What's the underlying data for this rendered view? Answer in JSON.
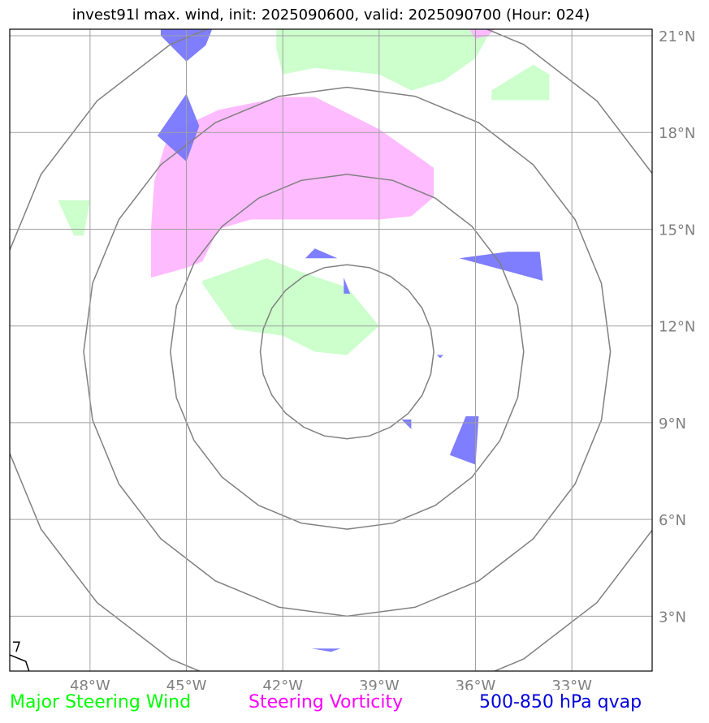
{
  "title": "invest91l max. wind, init: 2025090600, valid: 2025090700 (Hour: 024)",
  "map": {
    "lon_range": [
      -50.5,
      -30.5
    ],
    "lat_range": [
      1.3,
      21.2
    ],
    "center": {
      "lon": -40,
      "lat": 11.2
    },
    "lon_ticks": [
      {
        "value": -48,
        "label": "48°W"
      },
      {
        "value": -45,
        "label": "45°W"
      },
      {
        "value": -42,
        "label": "42°W"
      },
      {
        "value": -39,
        "label": "39°W"
      },
      {
        "value": -36,
        "label": "36°W"
      },
      {
        "value": -33,
        "label": "33°W"
      }
    ],
    "lat_ticks": [
      {
        "value": 21,
        "label": "21°N"
      },
      {
        "value": 18,
        "label": "18°N"
      },
      {
        "value": 15,
        "label": "15°N"
      },
      {
        "value": 12,
        "label": "12°N"
      },
      {
        "value": 9,
        "label": "9°N"
      },
      {
        "value": 6,
        "label": "6°N"
      },
      {
        "value": 3,
        "label": "3°N"
      }
    ],
    "range_rings_deg": [
      2.7,
      5.5,
      8.2,
      11
    ]
  },
  "layers": {
    "steering_wind": {
      "color": "#ccffcc",
      "regions": [
        [
          [
            -42.2,
            21.2
          ],
          [
            -38.2,
            21.2
          ],
          [
            -35.5,
            21.2
          ],
          [
            -36,
            20.3
          ],
          [
            -37,
            19.6
          ],
          [
            -38,
            19.3
          ],
          [
            -39,
            19.8
          ],
          [
            -41,
            20
          ],
          [
            -42,
            19.8
          ],
          [
            -42.2,
            20.6
          ]
        ],
        [
          [
            -35.5,
            19.3
          ],
          [
            -34.2,
            20.1
          ],
          [
            -33.7,
            19.8
          ],
          [
            -33.7,
            19
          ],
          [
            -35.5,
            19
          ]
        ],
        [
          [
            -49,
            15.9
          ],
          [
            -48,
            15.9
          ],
          [
            -48.2,
            14.8
          ],
          [
            -48.5,
            14.8
          ]
        ],
        [
          [
            -44.5,
            13.4
          ],
          [
            -42.5,
            14.1
          ],
          [
            -41.5,
            13.7
          ],
          [
            -40,
            13.2
          ],
          [
            -39.5,
            12.6
          ],
          [
            -39,
            12
          ],
          [
            -40,
            11.1
          ],
          [
            -41,
            11.2
          ],
          [
            -42,
            11.7
          ],
          [
            -43.5,
            11.9
          ],
          [
            -44.5,
            13.3
          ]
        ]
      ]
    },
    "steering_vorticity": {
      "color": "#ffbbff",
      "regions": [
        [
          [
            -45.5,
            18
          ],
          [
            -44,
            18.7
          ],
          [
            -42,
            19.1
          ],
          [
            -41,
            19.1
          ],
          [
            -40,
            18.6
          ],
          [
            -39,
            18.1
          ],
          [
            -38,
            17.4
          ],
          [
            -37.3,
            16.9
          ],
          [
            -37.3,
            16
          ],
          [
            -38,
            15.4
          ],
          [
            -39,
            15.3
          ],
          [
            -40,
            15.3
          ],
          [
            -41,
            15.3
          ],
          [
            -42,
            15.3
          ],
          [
            -43,
            15.3
          ],
          [
            -44,
            15
          ],
          [
            -44.5,
            14
          ],
          [
            -45,
            13.8
          ],
          [
            -46.1,
            13.5
          ],
          [
            -46.1,
            15
          ],
          [
            -46,
            16.5
          ],
          [
            -45.7,
            17.5
          ]
        ],
        [
          [
            -36.2,
            21.2
          ],
          [
            -35.4,
            21.2
          ],
          [
            -35.6,
            21
          ],
          [
            -36,
            20.9
          ]
        ]
      ]
    },
    "qvap": {
      "color": "#7777ff",
      "regions": [
        [
          [
            -45.8,
            21.2
          ],
          [
            -44.2,
            21.2
          ],
          [
            -44.4,
            20.7
          ],
          [
            -45,
            20.2
          ],
          [
            -45.8,
            21
          ]
        ],
        [
          [
            -45,
            19.2
          ],
          [
            -44.6,
            18.2
          ],
          [
            -45,
            17.1
          ],
          [
            -45.9,
            17.9
          ]
        ],
        [
          [
            -41.3,
            14.1
          ],
          [
            -41,
            14.4
          ],
          [
            -40.3,
            14.1
          ]
        ],
        [
          [
            -40.1,
            13.5
          ],
          [
            -40.1,
            13
          ],
          [
            -39.9,
            13
          ]
        ],
        [
          [
            -36.5,
            14.1
          ],
          [
            -35,
            14.3
          ],
          [
            -34,
            14.3
          ],
          [
            -33.9,
            13.4
          ],
          [
            -35,
            13.7
          ]
        ],
        [
          [
            -37.2,
            11.1
          ],
          [
            -37,
            11.1
          ],
          [
            -37.1,
            11
          ]
        ],
        [
          [
            -38.3,
            9.1
          ],
          [
            -38,
            9.1
          ],
          [
            -38,
            8.8
          ]
        ],
        [
          [
            -36.3,
            9.2
          ],
          [
            -35.9,
            9.2
          ],
          [
            -36,
            7.7
          ],
          [
            -36.8,
            8
          ]
        ],
        [
          [
            -41.1,
            2
          ],
          [
            -40.2,
            2
          ],
          [
            -40.5,
            1.9
          ]
        ]
      ]
    }
  },
  "coastline": {
    "color": "#000000",
    "segments": [
      [
        [
          -50.5,
          1.8
        ],
        [
          -50,
          1.6
        ],
        [
          -49.9,
          1.3
        ]
      ],
      [
        [
          -50.4,
          2.2
        ],
        [
          -50.2,
          2.2
        ],
        [
          -50.3,
          1.9
        ]
      ]
    ]
  },
  "legend": {
    "steering_wind": {
      "label": "Major Steering Wind",
      "color": "#00ff00"
    },
    "steering_vorticity": {
      "label": "Steering Vorticity",
      "color": "#ff00ff"
    },
    "qvap": {
      "label": "500-850 hPa qvap",
      "color": "#0000dd"
    }
  }
}
